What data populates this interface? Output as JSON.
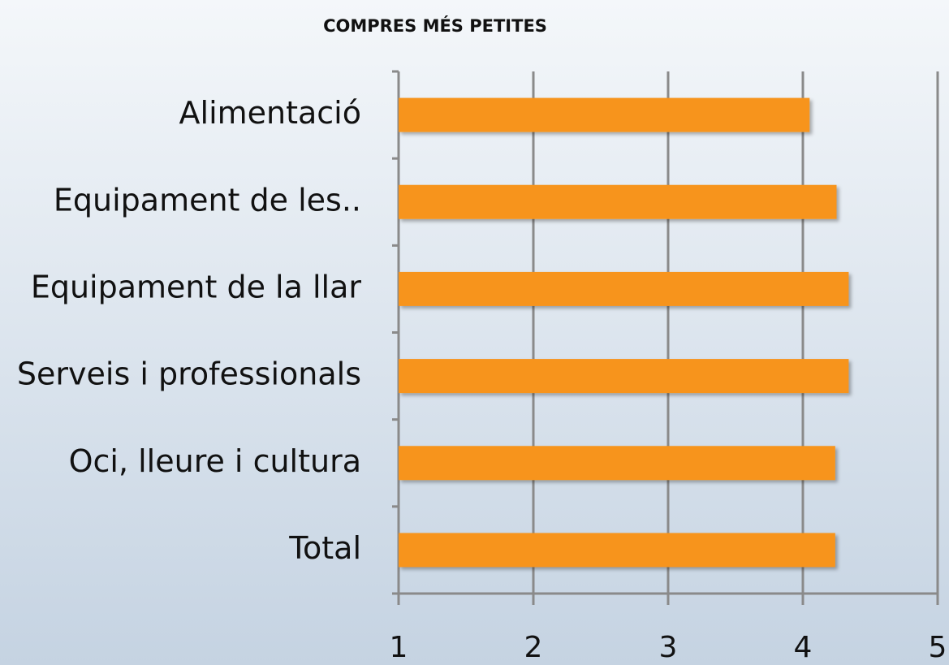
{
  "chart_data": {
    "type": "bar",
    "orientation": "horizontal",
    "title": "COMPRES MÉS PETITES",
    "categories": [
      "Alimentació",
      "Equipament de les..",
      "Equipament de la llar",
      "Serveis i professionals",
      "Oci, lleure i cultura",
      "Total"
    ],
    "values": [
      4.05,
      4.25,
      4.34,
      4.34,
      4.24,
      4.24
    ],
    "color": "#f7941d",
    "xlim": [
      1,
      5
    ],
    "xticks": [
      1,
      2,
      3,
      4,
      5
    ],
    "grid": true
  }
}
